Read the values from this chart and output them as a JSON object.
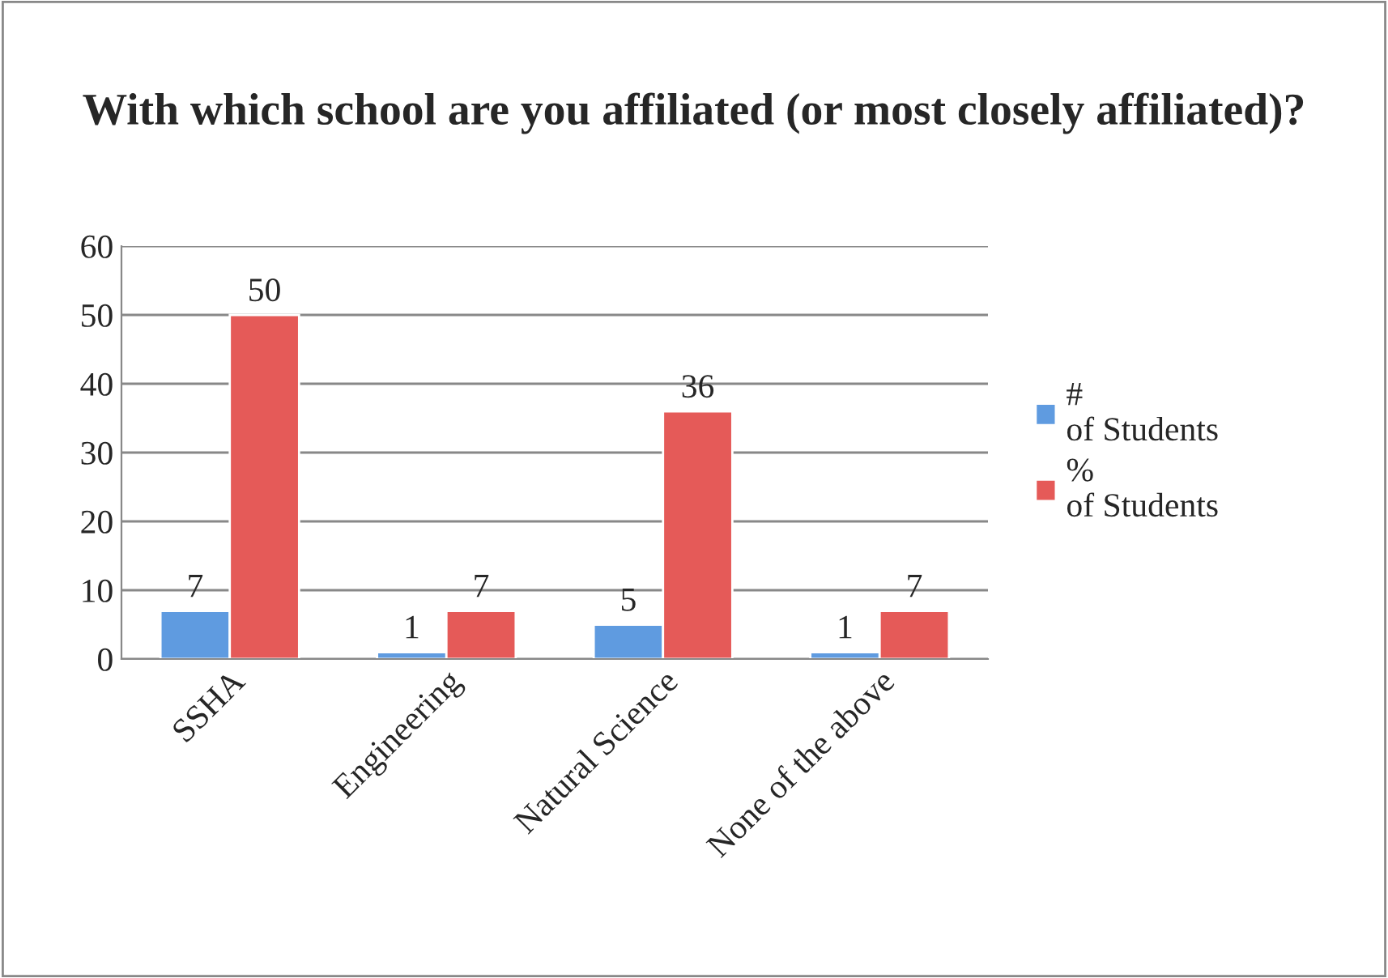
{
  "chart_data": {
    "type": "bar",
    "title": "With which school are you affiliated (or most closely affiliated)?",
    "categories": [
      "SSHA",
      "Engineering",
      "Natural Science",
      "None of the above"
    ],
    "series": [
      {
        "name": "# of Students",
        "color": "#5f9be0",
        "values": [
          7,
          1,
          5,
          1
        ]
      },
      {
        "name": "% of Students",
        "color": "#e55a58",
        "values": [
          50,
          7,
          36,
          7
        ]
      }
    ],
    "ylim": [
      0,
      60
    ],
    "yticks": [
      0,
      10,
      20,
      30,
      40,
      50,
      60
    ],
    "grid": "y",
    "legend": "right",
    "data_labels": true
  }
}
